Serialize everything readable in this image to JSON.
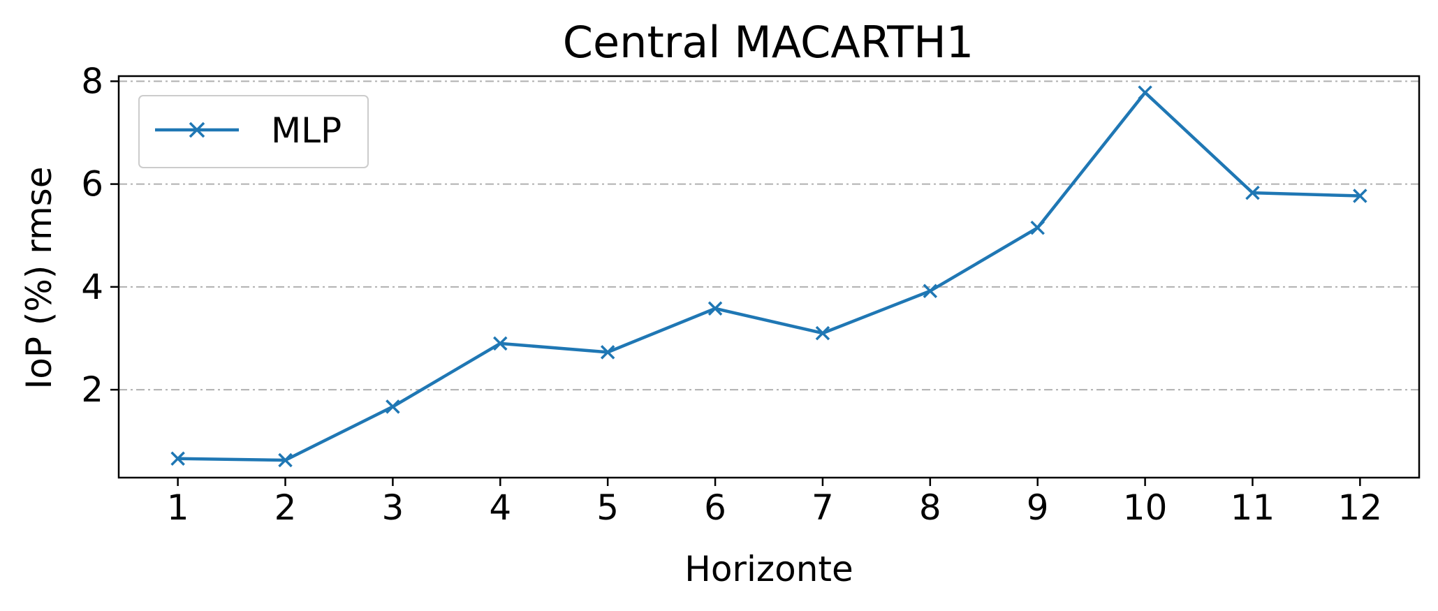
{
  "chart_data": {
    "type": "line",
    "title": "Central MACARTH1",
    "xlabel": "Horizonte",
    "ylabel": "IoP (%) rmse",
    "x": [
      1,
      2,
      3,
      4,
      5,
      6,
      7,
      8,
      9,
      10,
      11,
      12
    ],
    "xticks": [
      "1",
      "2",
      "3",
      "4",
      "5",
      "6",
      "7",
      "8",
      "9",
      "10",
      "11",
      "12"
    ],
    "yticks": [
      2,
      4,
      6,
      8
    ],
    "xlim": [
      0.45,
      12.55
    ],
    "ylim": [
      0.29,
      8.1
    ],
    "grid": "y, dash-dot",
    "legend_position": "upper-left",
    "series": [
      {
        "name": "MLP",
        "color": "#1f77b4",
        "marker": "x",
        "values": [
          0.66,
          0.63,
          1.67,
          2.9,
          2.73,
          3.58,
          3.1,
          3.92,
          5.15,
          7.78,
          5.83,
          5.77
        ]
      }
    ]
  }
}
